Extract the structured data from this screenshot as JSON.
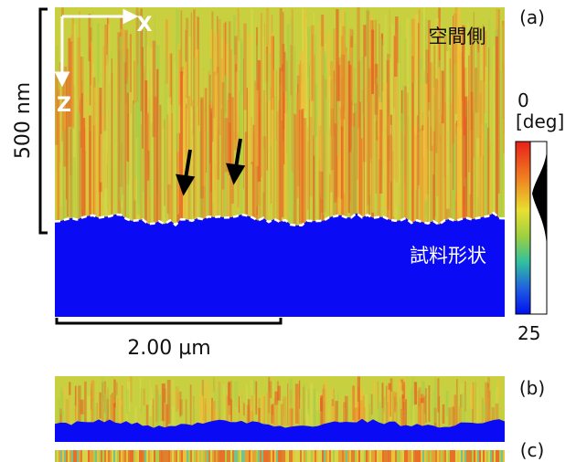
{
  "panel_a": {
    "label": "(a)",
    "axis_x": "X",
    "axis_z": "Z",
    "scale_z": "500 nm",
    "scale_x": "2.00 µm",
    "region_top": "空間側",
    "region_bottom": "試料形状",
    "colorbar": {
      "top": "0",
      "unit": "[deg]",
      "bottom": "25"
    }
  },
  "panel_b": {
    "label": "(b)"
  },
  "panel_c": {
    "label": "(c)"
  }
}
